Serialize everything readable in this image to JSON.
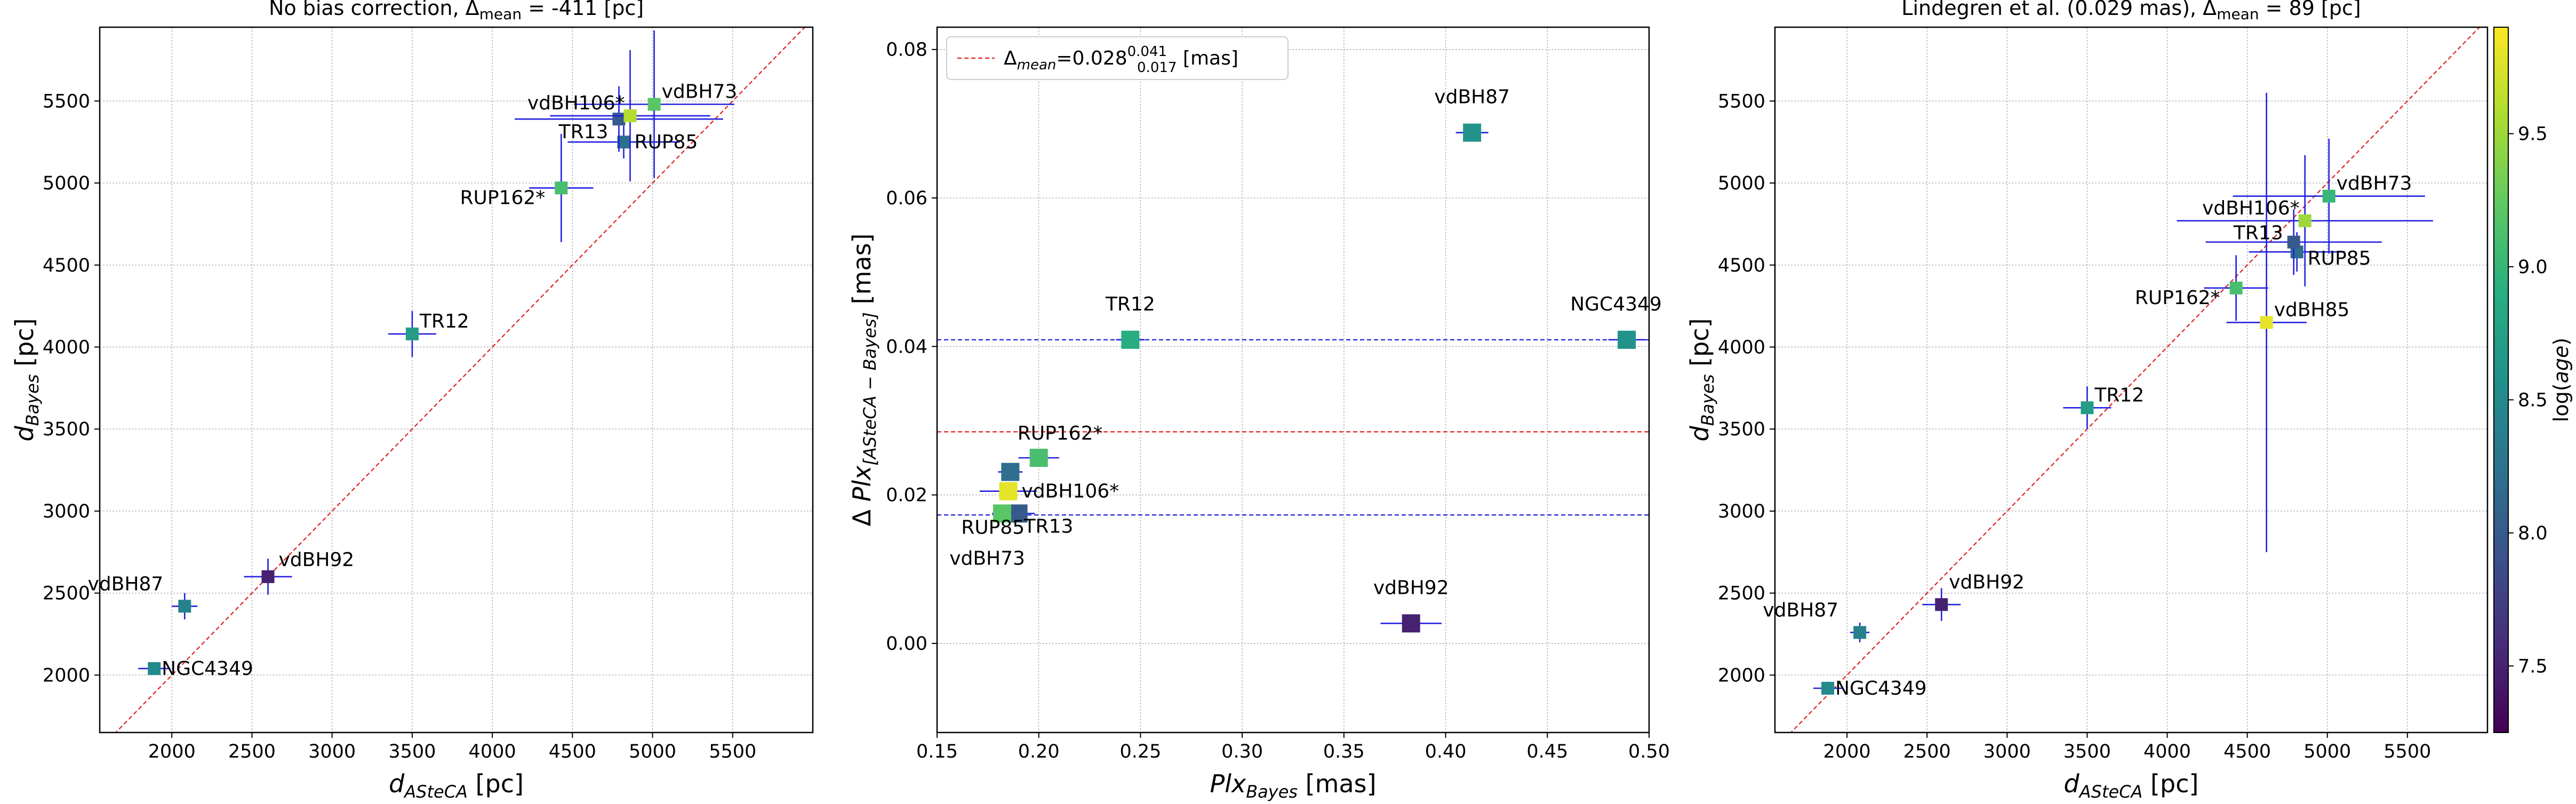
{
  "chart_data": [
    {
      "type": "scatter",
      "title": "No bias correction, Δmean = -411 [pc]",
      "xlabel": "d_ASteCA [pc]",
      "ylabel": "d_Bayes [pc]",
      "xlim": [
        1550,
        6000
      ],
      "ylim": [
        1650,
        5950
      ],
      "xticks": [
        2000,
        2500,
        3000,
        3500,
        4000,
        4500,
        5000,
        5500
      ],
      "yticks": [
        2000,
        2500,
        3000,
        3500,
        4000,
        4500,
        5000,
        5500
      ],
      "grid": true,
      "identity_line": true,
      "points": [
        {
          "label": "NGC4349",
          "x": 1890,
          "y": 2040,
          "xerr": 100,
          "yerr": 30,
          "age": 8.5
        },
        {
          "label": "vdBH87",
          "x": 2080,
          "y": 2420,
          "xerr": 80,
          "yerr": 80,
          "age": 8.4
        },
        {
          "label": "vdBH92",
          "x": 2600,
          "y": 2600,
          "xerr": 150,
          "yerr": 110,
          "age": 7.5
        },
        {
          "label": "TR12",
          "x": 3500,
          "y": 4080,
          "xerr": 150,
          "yerr": 140,
          "age": 8.7
        },
        {
          "label": "RUP162*",
          "x": 4430,
          "y": 4970,
          "xerr": 200,
          "yerr": 330,
          "age": 9.1
        },
        {
          "label": "RUP85",
          "x": 4820,
          "y": 5250,
          "xerr": 350,
          "yerr": 100,
          "age": 8.2
        },
        {
          "label": "TR13",
          "x": 4790,
          "y": 5390,
          "xerr": 650,
          "yerr": 200,
          "age": 8.0
        },
        {
          "label": "vdBH106*",
          "x": 4860,
          "y": 5410,
          "xerr": 500,
          "yerr": 400,
          "age": 9.6
        },
        {
          "label": "vdBH73",
          "x": 5010,
          "y": 5480,
          "xerr": 500,
          "yerr": 450,
          "age": 9.2
        }
      ]
    },
    {
      "type": "scatter",
      "title": "",
      "xlabel": "Plx_Bayes [mas]",
      "ylabel": "Δ Plx_[ASteCA − Bayes] [mas]",
      "xlim": [
        0.15,
        0.5
      ],
      "ylim": [
        -0.012,
        0.083
      ],
      "xticks": [
        0.15,
        0.2,
        0.25,
        0.3,
        0.35,
        0.4,
        0.45,
        0.5
      ],
      "xtick_labels": [
        "0.15",
        "0.20",
        "0.25",
        "0.30",
        "0.35",
        "0.40",
        "0.45",
        "0.50"
      ],
      "yticks": [
        0.0,
        0.02,
        0.04,
        0.06,
        0.08
      ],
      "ytick_labels": [
        "0.00",
        "0.02",
        "0.04",
        "0.06",
        "0.08"
      ],
      "grid": true,
      "legend": {
        "placement": "top-left",
        "entry": "Δmean = 0.028 (0.017–0.041) [mas]",
        "main": "Δ",
        "sub": "mean",
        "text": "=0.028",
        "sup_val": "0.041",
        "sub_val": "0.017",
        "unit": " [mas]"
      },
      "hlines": [
        {
          "y": 0.0285,
          "color": "#e02020"
        },
        {
          "y": 0.0409,
          "color": "#2020e0"
        },
        {
          "y": 0.0173,
          "color": "#2020e0"
        }
      ],
      "points": [
        {
          "label": "vdBH87",
          "x": 0.413,
          "y": 0.0688,
          "xerr": 0.008,
          "age": 8.6
        },
        {
          "label": "TR12",
          "x": 0.245,
          "y": 0.0409,
          "xerr": 0.007,
          "age": 8.9
        },
        {
          "label": "NGC4349",
          "x": 0.489,
          "y": 0.0409,
          "xerr": 0.009,
          "age": 8.6
        },
        {
          "label": "RUP162*",
          "x": 0.2,
          "y": 0.025,
          "xerr": 0.01,
          "age": 9.1
        },
        {
          "label": "",
          "x": 0.186,
          "y": 0.0231,
          "xerr": 0.006,
          "age": 8.2
        },
        {
          "label": "vdBH106*",
          "x": 0.185,
          "y": 0.0205,
          "xerr": 0.014,
          "age": 9.8
        },
        {
          "label": "RUP85",
          "x": 0.184,
          "y": 0.0175,
          "xerr": 0.006,
          "age": 9.0
        },
        {
          "label": "TR13",
          "x": 0.19,
          "y": 0.0175,
          "xerr": 0.008,
          "age": 8.0
        },
        {
          "label": "vdBH73",
          "x": 0.182,
          "y": 0.0175,
          "xerr": 0.005,
          "age": 9.2
        },
        {
          "label": "vdBH92",
          "x": 0.383,
          "y": 0.0027,
          "xerr": 0.015,
          "age": 7.5
        }
      ]
    },
    {
      "type": "scatter",
      "title": "Lindegren et al. (0.029 mas), Δmean = 89 [pc]",
      "xlabel": "d_ASteCA [pc]",
      "ylabel": "d_Bayes [pc]",
      "xlim": [
        1550,
        6000
      ],
      "ylim": [
        1650,
        5950
      ],
      "xticks": [
        2000,
        2500,
        3000,
        3500,
        4000,
        4500,
        5000,
        5500
      ],
      "yticks": [
        2000,
        2500,
        3000,
        3500,
        4000,
        4500,
        5000,
        5500
      ],
      "grid": true,
      "identity_line": true,
      "colorbar": {
        "label": "log(age)",
        "min": 7.25,
        "max": 9.9,
        "ticks": [
          7.5,
          8.0,
          8.5,
          9.0,
          9.5
        ]
      },
      "points": [
        {
          "label": "NGC4349",
          "x": 1880,
          "y": 1920,
          "xerr": 90,
          "yerr": 40,
          "age": 8.5
        },
        {
          "label": "vdBH87",
          "x": 2080,
          "y": 2260,
          "xerr": 60,
          "yerr": 60,
          "age": 8.4
        },
        {
          "label": "vdBH92",
          "x": 2590,
          "y": 2430,
          "xerr": 120,
          "yerr": 100,
          "age": 7.5
        },
        {
          "label": "TR12",
          "x": 3500,
          "y": 3630,
          "xerr": 150,
          "yerr": 130,
          "age": 8.7
        },
        {
          "label": "RUP162*",
          "x": 4430,
          "y": 4360,
          "xerr": 200,
          "yerr": 200,
          "age": 9.1
        },
        {
          "label": "vdBH85",
          "x": 4620,
          "y": 4150,
          "xerr": 250,
          "yerr": 1400,
          "age": 9.8
        },
        {
          "label": "RUP85",
          "x": 4810,
          "y": 4580,
          "xerr": 300,
          "yerr": 120,
          "age": 8.2
        },
        {
          "label": "TR13",
          "x": 4790,
          "y": 4640,
          "xerr": 550,
          "yerr": 200,
          "age": 8.0
        },
        {
          "label": "vdBH106*",
          "x": 4860,
          "y": 4770,
          "xerr": 800,
          "yerr": 400,
          "age": 9.5
        },
        {
          "label": "vdBH73",
          "x": 5010,
          "y": 4920,
          "xerr": 600,
          "yerr": 350,
          "age": 9.0
        }
      ]
    }
  ]
}
